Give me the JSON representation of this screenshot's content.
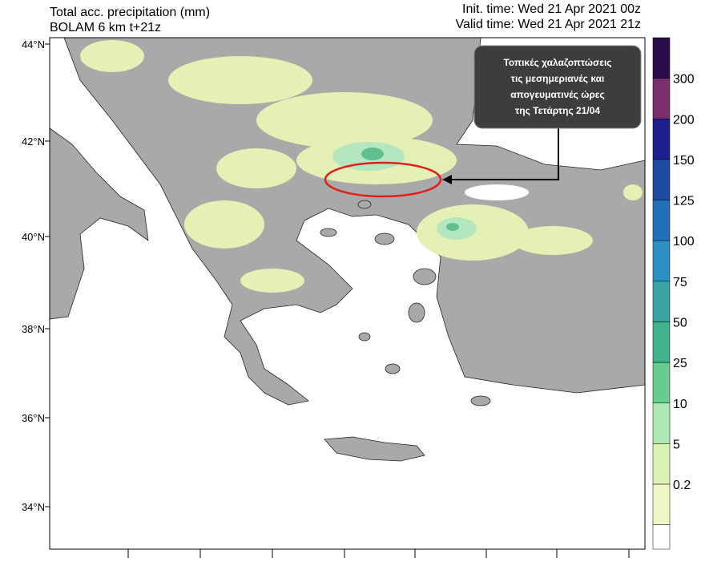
{
  "header": {
    "title": "Total acc. precipitation (mm)",
    "subtitle": "BOLAM 6 km t+21z",
    "init_time": "Init. time: Wed 21 Apr 2021 00z",
    "valid_time": "Valid time: Wed 21 Apr 2021 21z"
  },
  "lat_labels": [
    "44°N",
    "42°N",
    "40°N",
    "38°N",
    "36°N",
    "34°N"
  ],
  "colorbar": {
    "colors": [
      "#2b0d4e",
      "#7a2f6c",
      "#1e1e8e",
      "#1c4ba0",
      "#2070b8",
      "#2b90c2",
      "#3ba3a3",
      "#3fb38c",
      "#66cc90",
      "#aee8b4",
      "#dcf2b4",
      "#f0f5c6",
      "#ffffff"
    ],
    "labels": [
      "300",
      "200",
      "150",
      "125",
      "100",
      "75",
      "50",
      "25",
      "10",
      "5",
      "0.2"
    ]
  },
  "annotation": {
    "lines": [
      "Τοπικές χαλαζοπτώσεις",
      "τις μεσημεριανές και",
      "απογευματινές ώρες",
      "της Τετάρτης 21/04"
    ]
  }
}
